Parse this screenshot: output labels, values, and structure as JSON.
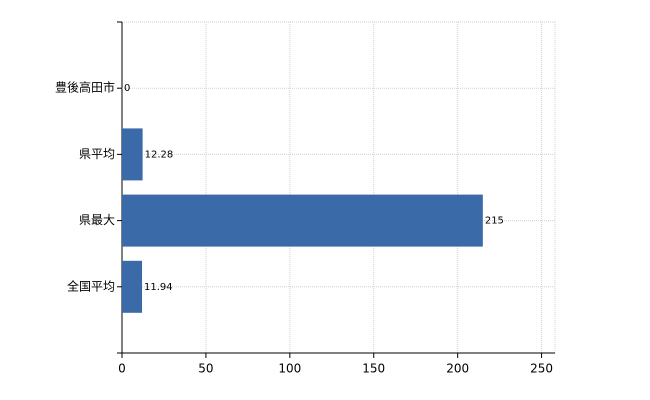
{
  "chart_data": {
    "type": "bar",
    "categories": [
      "豊後高田市",
      "県平均",
      "県最大",
      "全国平均"
    ],
    "values": [
      0,
      12.28,
      215,
      11.94
    ],
    "color": "#3b6aa8",
    "xlim": [
      0,
      258
    ],
    "xticks": [
      0,
      50,
      100,
      150,
      200,
      250
    ],
    "grid": true
  }
}
